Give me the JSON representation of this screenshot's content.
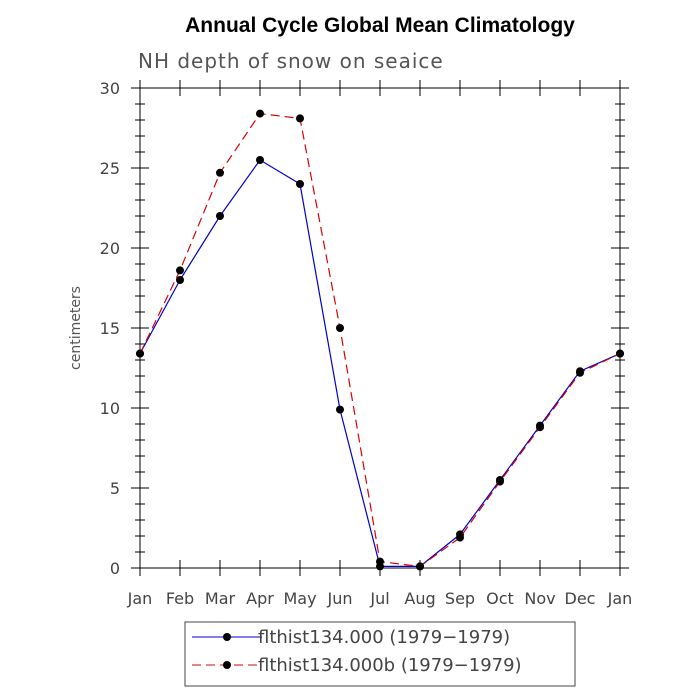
{
  "chart_data": {
    "type": "line",
    "title": "Annual Cycle Global Mean Climatology",
    "subtitle": "NH depth of snow on seaice",
    "xlabel": "",
    "ylabel": "centimeters",
    "categories": [
      "Jan",
      "Feb",
      "Mar",
      "Apr",
      "May",
      "Jun",
      "Jul",
      "Aug",
      "Sep",
      "Oct",
      "Nov",
      "Dec",
      "Jan"
    ],
    "ylim": [
      0,
      30
    ],
    "yticks": [
      0,
      5,
      10,
      15,
      20,
      25,
      30
    ],
    "grid": false,
    "legend_position": "bottom-center",
    "series": [
      {
        "name": "flthist134.000 (1979−1979)",
        "color": "#0000cc",
        "dash": "solid",
        "values": [
          13.4,
          18.0,
          22.0,
          25.5,
          24.0,
          9.9,
          0.1,
          0.1,
          2.1,
          5.5,
          8.9,
          12.3,
          13.4
        ]
      },
      {
        "name": "flthist134.000b (1979−1979)",
        "color": "#dd0000",
        "dash": "dashed",
        "values": [
          13.4,
          18.6,
          24.7,
          28.4,
          28.1,
          15.0,
          0.4,
          0.1,
          1.9,
          5.4,
          8.8,
          12.2,
          13.4
        ]
      }
    ]
  }
}
